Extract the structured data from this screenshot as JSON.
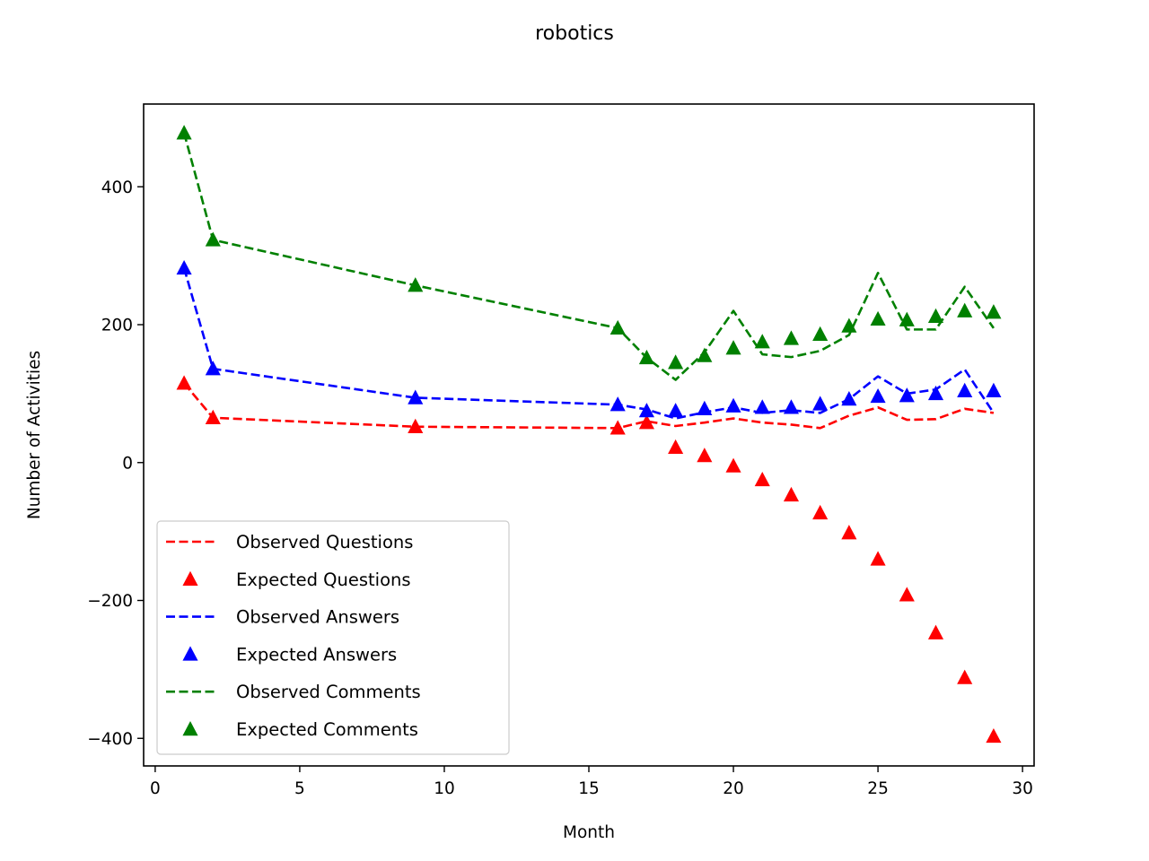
{
  "chart_data": {
    "type": "line",
    "title": "robotics",
    "xlabel": "Month",
    "ylabel": "Number of Activities",
    "xlim": [
      -0.4,
      30.4
    ],
    "ylim": [
      -440,
      520
    ],
    "xticks": [
      0,
      5,
      10,
      15,
      20,
      25,
      30
    ],
    "yticks": [
      -400,
      -200,
      0,
      200,
      400
    ],
    "xtick_labels": [
      "0",
      "5",
      "10",
      "15",
      "20",
      "25",
      "30"
    ],
    "ytick_labels": [
      "−400",
      "−200",
      "0",
      "200",
      "400"
    ],
    "grid": false,
    "legend_position": "lower-left",
    "x": [
      1,
      2,
      9,
      16,
      17,
      18,
      19,
      20,
      21,
      22,
      23,
      24,
      25,
      26,
      27,
      28,
      29
    ],
    "series": [
      {
        "name": "Observed Questions",
        "style": "dashed",
        "color": "#ff0000",
        "values": [
          115,
          65,
          52,
          50,
          60,
          53,
          58,
          64,
          58,
          55,
          50,
          68,
          80,
          62,
          63,
          78,
          72
        ]
      },
      {
        "name": "Expected Questions",
        "style": "triangle",
        "color": "#ff0000",
        "values": [
          115,
          65,
          52,
          50,
          58,
          22,
          10,
          -5,
          -25,
          -47,
          -73,
          -102,
          -140,
          -192,
          -247,
          -312,
          -397
        ]
      },
      {
        "name": "Observed Answers",
        "style": "dashed",
        "color": "#0000ff",
        "values": [
          282,
          136,
          94,
          84,
          77,
          64,
          73,
          80,
          72,
          76,
          72,
          92,
          125,
          100,
          106,
          135,
          72
        ]
      },
      {
        "name": "Expected Answers",
        "style": "triangle",
        "color": "#0000ff",
        "values": [
          282,
          136,
          94,
          84,
          75,
          75,
          78,
          82,
          80,
          80,
          85,
          92,
          96,
          97,
          100,
          104,
          104
        ]
      },
      {
        "name": "Observed Comments",
        "style": "dashed",
        "color": "#008000",
        "values": [
          478,
          323,
          257,
          195,
          152,
          120,
          160,
          220,
          157,
          153,
          162,
          185,
          275,
          193,
          193,
          255,
          195
        ]
      },
      {
        "name": "Expected Comments",
        "style": "triangle",
        "color": "#008000",
        "values": [
          478,
          323,
          257,
          195,
          152,
          145,
          155,
          166,
          175,
          180,
          186,
          198,
          208,
          207,
          212,
          220,
          218
        ]
      }
    ]
  }
}
